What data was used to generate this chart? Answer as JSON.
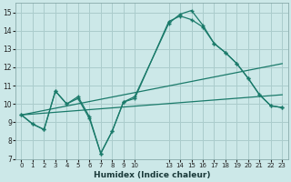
{
  "xlabel": "Humidex (Indice chaleur)",
  "background_color": "#cce8e8",
  "grid_color": "#aacccc",
  "line_color": "#1a7a6a",
  "xlim": [
    -0.5,
    23.5
  ],
  "ylim": [
    7,
    15.5
  ],
  "xticks": [
    0,
    1,
    2,
    3,
    4,
    5,
    6,
    7,
    8,
    9,
    10,
    13,
    14,
    15,
    16,
    17,
    18,
    19,
    20,
    21,
    22,
    23
  ],
  "yticks": [
    7,
    8,
    9,
    10,
    11,
    12,
    13,
    14,
    15
  ],
  "series": [
    {
      "x": [
        0,
        1,
        2,
        3,
        4,
        5,
        6,
        7,
        8,
        9,
        10,
        13,
        14,
        15,
        16,
        17,
        18,
        19,
        20,
        21,
        22,
        23
      ],
      "y": [
        9.4,
        8.9,
        8.6,
        10.7,
        10.0,
        10.4,
        9.3,
        7.3,
        8.5,
        10.1,
        10.4,
        14.4,
        14.9,
        15.1,
        14.3,
        13.3,
        12.8,
        12.2,
        11.4,
        10.5,
        9.9,
        9.8
      ]
    },
    {
      "x": [
        0,
        1,
        2,
        3,
        4,
        5,
        6,
        7,
        8,
        9,
        10,
        13,
        14,
        15,
        16,
        17,
        18,
        19,
        20,
        21,
        22,
        23
      ],
      "y": [
        9.4,
        8.9,
        8.6,
        10.7,
        10.0,
        10.3,
        9.2,
        7.3,
        8.5,
        10.1,
        10.3,
        14.5,
        14.8,
        14.6,
        14.2,
        13.3,
        12.8,
        12.2,
        11.4,
        10.5,
        9.9,
        9.8
      ]
    },
    {
      "x": [
        0,
        23
      ],
      "y": [
        9.4,
        12.2
      ]
    },
    {
      "x": [
        0,
        23
      ],
      "y": [
        9.4,
        10.5
      ]
    }
  ]
}
